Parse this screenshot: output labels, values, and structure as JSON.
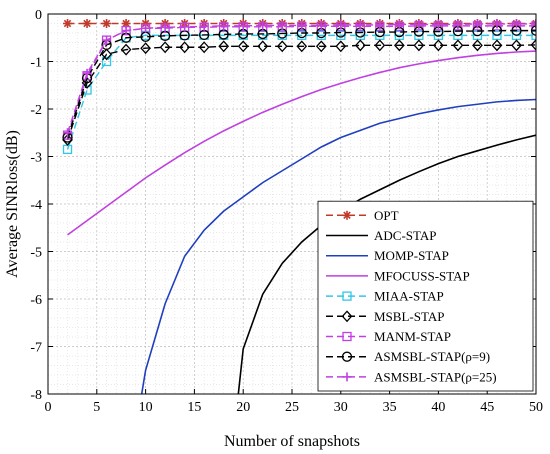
{
  "chart_data": {
    "type": "line",
    "title": "",
    "xlabel": "Number of snapshots",
    "ylabel": "Average SINRloss(dB)",
    "xlim": [
      0,
      50
    ],
    "ylim": [
      -8,
      0
    ],
    "xticks": [
      0,
      5,
      10,
      15,
      20,
      25,
      30,
      35,
      40,
      45,
      50
    ],
    "yticks": [
      -8,
      -7,
      -6,
      -5,
      -4,
      -3,
      -2,
      -1,
      0
    ],
    "grid": true,
    "legend_position": "bottom-right",
    "series": [
      {
        "name": "OPT",
        "color": "#c0392b",
        "dash": "dashed",
        "marker": "asterisk",
        "x": [
          2,
          4,
          6,
          8,
          10,
          12,
          14,
          16,
          18,
          20,
          22,
          24,
          26,
          28,
          30,
          32,
          34,
          36,
          38,
          40,
          42,
          44,
          46,
          48,
          50
        ],
        "y": [
          -0.2,
          -0.2,
          -0.2,
          -0.2,
          -0.2,
          -0.2,
          -0.2,
          -0.2,
          -0.2,
          -0.2,
          -0.2,
          -0.2,
          -0.2,
          -0.2,
          -0.2,
          -0.2,
          -0.2,
          -0.2,
          -0.2,
          -0.2,
          -0.2,
          -0.2,
          -0.2,
          -0.2,
          -0.2
        ]
      },
      {
        "name": "ADC-STAP",
        "color": "#000000",
        "dash": "solid",
        "marker": "none",
        "x": [
          19.5,
          20,
          22,
          24,
          26,
          28,
          30,
          32,
          34,
          36,
          38,
          40,
          42,
          44,
          46,
          48,
          50
        ],
        "y": [
          -8.0,
          -7.05,
          -5.9,
          -5.25,
          -4.8,
          -4.45,
          -4.15,
          -3.9,
          -3.7,
          -3.5,
          -3.32,
          -3.15,
          -3.0,
          -2.88,
          -2.76,
          -2.65,
          -2.55
        ]
      },
      {
        "name": "MOMP-STAP",
        "color": "#1f3fbf",
        "dash": "solid",
        "marker": "none",
        "x": [
          9.6,
          10,
          12,
          14,
          16,
          18,
          20,
          22,
          24,
          26,
          28,
          30,
          32,
          34,
          36,
          38,
          40,
          42,
          44,
          46,
          48,
          50
        ],
        "y": [
          -8.0,
          -7.5,
          -6.1,
          -5.1,
          -4.55,
          -4.15,
          -3.85,
          -3.55,
          -3.3,
          -3.05,
          -2.8,
          -2.6,
          -2.45,
          -2.3,
          -2.2,
          -2.1,
          -2.02,
          -1.95,
          -1.9,
          -1.85,
          -1.82,
          -1.8
        ]
      },
      {
        "name": "MFOCUSS-STAP",
        "color": "#c040e0",
        "dash": "solid",
        "marker": "none",
        "x": [
          2,
          4,
          6,
          8,
          10,
          12,
          14,
          16,
          18,
          20,
          22,
          24,
          26,
          28,
          30,
          32,
          34,
          36,
          38,
          40,
          42,
          44,
          46,
          48,
          50
        ],
        "y": [
          -4.65,
          -4.35,
          -4.05,
          -3.75,
          -3.45,
          -3.18,
          -2.92,
          -2.68,
          -2.46,
          -2.26,
          -2.07,
          -1.9,
          -1.74,
          -1.59,
          -1.46,
          -1.34,
          -1.23,
          -1.13,
          -1.05,
          -0.98,
          -0.92,
          -0.87,
          -0.83,
          -0.8,
          -0.78
        ]
      },
      {
        "name": "MIAA-STAP",
        "color": "#33c6e6",
        "dash": "dashed",
        "marker": "square",
        "x": [
          2,
          4,
          6,
          8,
          10,
          12,
          14,
          16,
          18,
          20,
          22,
          24,
          26,
          28,
          30,
          32,
          34,
          36,
          38,
          40,
          42,
          44,
          46,
          48,
          50
        ],
        "y": [
          -2.85,
          -1.6,
          -1.0,
          -0.5,
          -0.45,
          -0.45,
          -0.45,
          -0.45,
          -0.45,
          -0.45,
          -0.45,
          -0.45,
          -0.45,
          -0.45,
          -0.45,
          -0.45,
          -0.45,
          -0.45,
          -0.45,
          -0.45,
          -0.45,
          -0.45,
          -0.45,
          -0.45,
          -0.45
        ]
      },
      {
        "name": "MSBL-STAP",
        "color": "#000000",
        "dash": "dashed",
        "marker": "diamond",
        "x": [
          2,
          4,
          6,
          8,
          10,
          12,
          14,
          16,
          18,
          20,
          22,
          24,
          26,
          28,
          30,
          32,
          34,
          36,
          38,
          40,
          42,
          44,
          46,
          48,
          50
        ],
        "y": [
          -2.65,
          -1.45,
          -0.85,
          -0.75,
          -0.72,
          -0.7,
          -0.7,
          -0.7,
          -0.68,
          -0.68,
          -0.68,
          -0.68,
          -0.68,
          -0.68,
          -0.68,
          -0.66,
          -0.66,
          -0.66,
          -0.66,
          -0.66,
          -0.66,
          -0.66,
          -0.66,
          -0.66,
          -0.65
        ]
      },
      {
        "name": "MANM-STAP",
        "color": "#c040e0",
        "dash": "dashed",
        "marker": "square",
        "x": [
          2,
          4,
          6,
          8,
          10,
          12,
          14,
          16,
          18,
          20,
          22,
          24,
          26,
          28,
          30,
          32,
          34,
          36,
          38,
          40,
          42,
          44,
          46,
          48,
          50
        ],
        "y": [
          -2.55,
          -1.3,
          -0.55,
          -0.35,
          -0.3,
          -0.3,
          -0.28,
          -0.28,
          -0.27,
          -0.27,
          -0.27,
          -0.27,
          -0.26,
          -0.26,
          -0.26,
          -0.26,
          -0.26,
          -0.26,
          -0.25,
          -0.25,
          -0.25,
          -0.25,
          -0.25,
          -0.25,
          -0.25
        ]
      },
      {
        "name": "ASMSBL-STAP(ρ=9)",
        "color": "#000000",
        "dash": "dashed",
        "marker": "circle",
        "x": [
          2,
          4,
          6,
          8,
          10,
          12,
          14,
          16,
          18,
          20,
          22,
          24,
          26,
          28,
          30,
          32,
          34,
          36,
          38,
          40,
          42,
          44,
          46,
          48,
          50
        ],
        "y": [
          -2.6,
          -1.35,
          -0.65,
          -0.5,
          -0.48,
          -0.46,
          -0.45,
          -0.44,
          -0.43,
          -0.42,
          -0.42,
          -0.41,
          -0.4,
          -0.4,
          -0.39,
          -0.39,
          -0.38,
          -0.38,
          -0.37,
          -0.37,
          -0.36,
          -0.36,
          -0.35,
          -0.35,
          -0.35
        ]
      },
      {
        "name": "ASMSBL-STAP(ρ=25)",
        "color": "#c040e0",
        "dash": "dashed",
        "marker": "plus",
        "x": [
          2,
          4,
          6,
          8,
          10,
          12,
          14,
          16,
          18,
          20,
          22,
          24,
          26,
          28,
          30,
          32,
          34,
          36,
          38,
          40,
          42,
          44,
          46,
          48,
          50
        ],
        "y": [
          -2.5,
          -1.25,
          -0.55,
          -0.35,
          -0.3,
          -0.28,
          -0.27,
          -0.26,
          -0.25,
          -0.25,
          -0.24,
          -0.24,
          -0.24,
          -0.24,
          -0.23,
          -0.23,
          -0.23,
          -0.22,
          -0.22,
          -0.22,
          -0.22,
          -0.21,
          -0.21,
          -0.21,
          -0.21
        ]
      }
    ]
  }
}
